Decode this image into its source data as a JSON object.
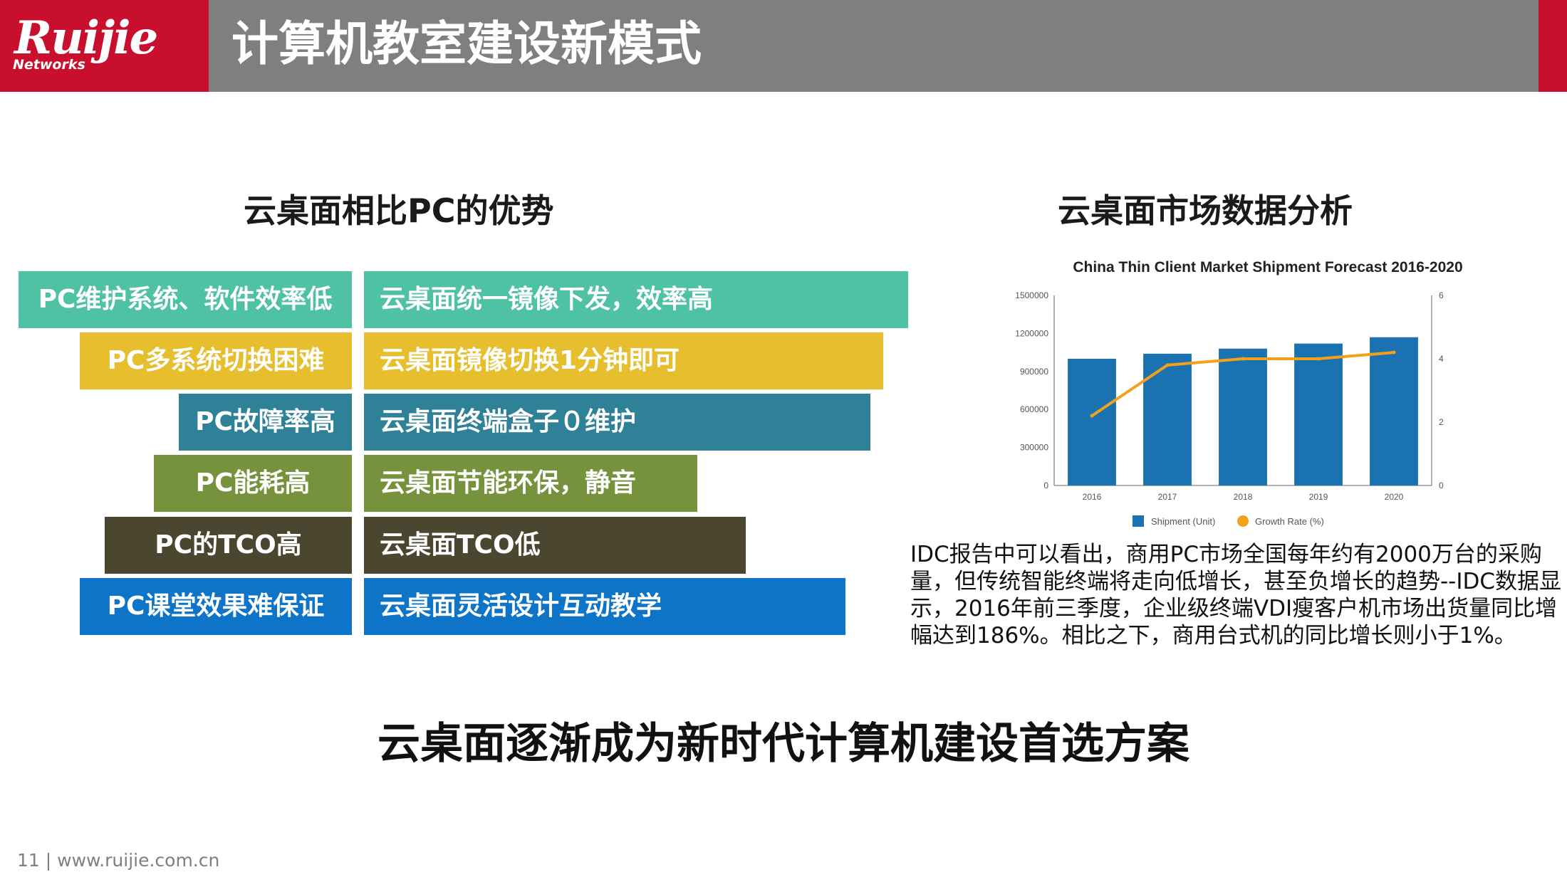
{
  "header": {
    "logo_main": "Ruijie",
    "logo_sub": "Networks",
    "title": "计算机教室建设新模式"
  },
  "left_section": {
    "title": "云桌面相比PC的优势",
    "rows": [
      {
        "pc": "PC维护系统、软件效率低",
        "cloud": "云桌面统一镜像下发，效率高",
        "color": "#4fc1a5"
      },
      {
        "pc": "PC多系统切换困难",
        "cloud": "云桌面镜像切换1分钟即可",
        "color": "#e6be2e"
      },
      {
        "pc": "PC故障率高",
        "cloud": "云桌面终端盒子０维护",
        "color": "#2f8197"
      },
      {
        "pc": "PC能耗高",
        "cloud": "云桌面节能环保，静音",
        "color": "#76923c"
      },
      {
        "pc": "PC的TCO高",
        "cloud": "云桌面TCO低",
        "color": "#4a4630"
      },
      {
        "pc": "PC课堂效果难保证",
        "cloud": "云桌面灵活设计互动教学",
        "color": "#0d74c7"
      }
    ]
  },
  "right_section": {
    "title": "云桌面市场数据分析",
    "description": "IDC报告中可以看出，商用PC市场全国每年约有2000万台的采购量，但传统智能终端将走向低增长，甚至负增长的趋势--IDC数据显示，2016年前三季度，企业级终端VDI瘦客户机市场出货量同比增幅达到186%。相比之下，商用台式机的同比增长则小于1%。"
  },
  "chart_data": {
    "type": "bar",
    "title": "China Thin Client Market Shipment Forecast 2016-2020",
    "categories": [
      "2016",
      "2017",
      "2018",
      "2019",
      "2020"
    ],
    "series": [
      {
        "name": "Shipment (Unit)",
        "type": "bar",
        "axis": "left",
        "color": "#1a73b0",
        "values": [
          1000000,
          1040000,
          1080000,
          1120000,
          1170000
        ]
      },
      {
        "name": "Growth Rate (%)",
        "type": "line",
        "axis": "right",
        "color": "#f5a01a",
        "values": [
          2.2,
          3.8,
          4.0,
          4.0,
          4.2
        ]
      }
    ],
    "y_left": {
      "ylim": [
        0,
        1500000
      ],
      "ticks": [
        "0",
        "300000",
        "600000",
        "900000",
        "1200000",
        "1500000"
      ]
    },
    "y_right": {
      "ylim": [
        0,
        6
      ],
      "ticks": [
        "0",
        "2",
        "4",
        "6"
      ]
    },
    "legend_position": "bottom",
    "grid": false
  },
  "bottom": {
    "text": "云桌面逐渐成为新时代计算机建设首选方案"
  },
  "footer": {
    "text": "11 | www.ruijie.com.cn"
  }
}
